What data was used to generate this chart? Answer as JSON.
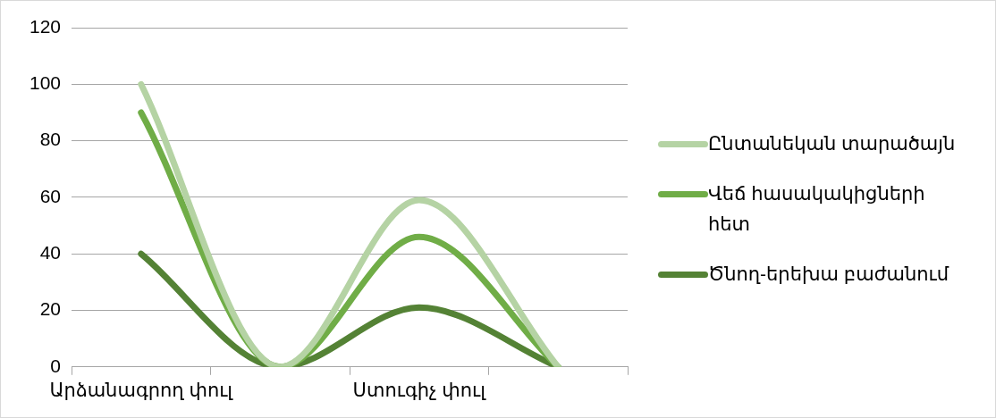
{
  "chart_data": {
    "type": "line",
    "categories": [
      "Արձանագրող փուլ",
      null,
      "Ստուգիչ փուլ",
      null
    ],
    "series": [
      {
        "name": "Ընտանեկան տարածայն",
        "color": "#b5d3a4",
        "values": [
          100,
          0,
          59,
          0
        ]
      },
      {
        "name": "Վեճ հասակակիցների հետ",
        "color": "#70ad47",
        "values": [
          90,
          0,
          46,
          0
        ]
      },
      {
        "name": "Ծնող-երեխա բաժանում",
        "color": "#548235",
        "values": [
          40,
          0,
          21,
          0
        ]
      }
    ],
    "ylim": [
      0,
      120
    ],
    "yticks": [
      0,
      20,
      40,
      60,
      80,
      100,
      120
    ],
    "grid": "y",
    "legend": "right",
    "marker": "none",
    "line_style": "solid"
  }
}
